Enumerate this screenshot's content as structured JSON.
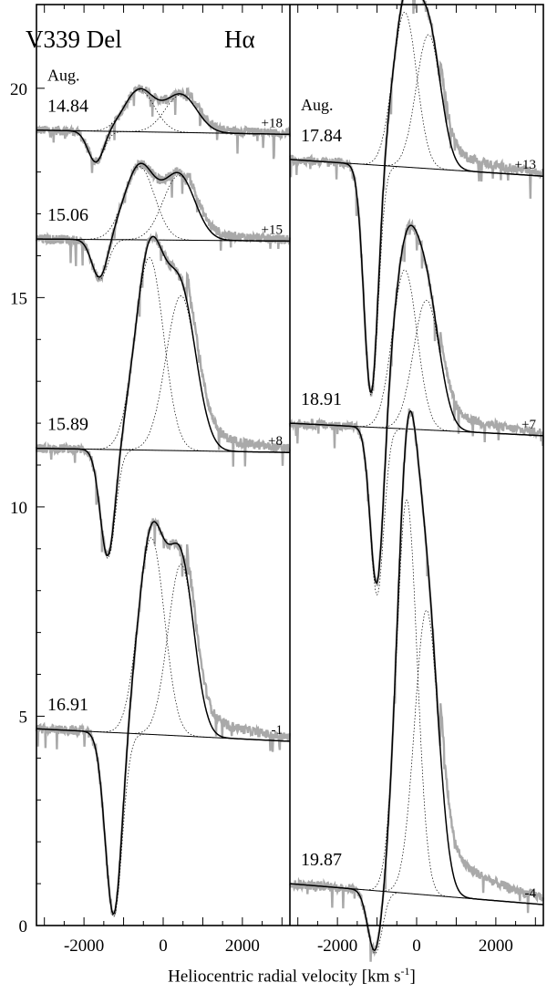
{
  "chart_data": {
    "type": "line",
    "title": "V339 Del",
    "line_label": "Hα",
    "month_label": "Aug.",
    "xlabel": "Heliocentric radial velocity [km s^-1]",
    "xlabel_main": "Heliocentric radial velocity [km s",
    "xlabel_sup": "-1",
    "xlabel_tail": "]",
    "xlim": [
      -3200,
      3200
    ],
    "ylim": [
      0,
      22
    ],
    "xticks": [
      -2000,
      0,
      2000
    ],
    "yticks": [
      0,
      5,
      10,
      15,
      20
    ],
    "panels": [
      {
        "name": "left",
        "spectra": [
          {
            "date": "14.84",
            "offset": "+18",
            "baseline": [
              19.0,
              18.9
            ],
            "absorption": {
              "v": -1700,
              "depth": 0.75,
              "sigma": 200
            },
            "gauss1": {
              "v": -600,
              "amp": 1.0,
              "sigma": 380
            },
            "gauss2": {
              "v": 450,
              "amp": 0.9,
              "sigma": 400
            }
          },
          {
            "date": "15.06",
            "offset": "+15",
            "baseline": [
              16.4,
              16.35
            ],
            "absorption": {
              "v": -1600,
              "depth": 0.95,
              "sigma": 200
            },
            "gauss1": {
              "v": -600,
              "amp": 1.75,
              "sigma": 380
            },
            "gauss2": {
              "v": 400,
              "amp": 1.55,
              "sigma": 400
            }
          },
          {
            "date": "15.89",
            "offset": "+8",
            "baseline": [
              11.4,
              11.3
            ],
            "absorption": {
              "v": -1400,
              "depth": 2.6,
              "sigma": 190
            },
            "gauss1": {
              "v": -350,
              "amp": 4.6,
              "sigma": 360
            },
            "gauss2": {
              "v": 450,
              "amp": 3.7,
              "sigma": 380
            }
          },
          {
            "date": "16.91",
            "offset": "-1",
            "baseline": [
              4.7,
              4.4
            ],
            "absorption": {
              "v": -1250,
              "depth": 4.4,
              "sigma": 210
            },
            "gauss1": {
              "v": -300,
              "amp": 4.7,
              "sigma": 330
            },
            "gauss2": {
              "v": 450,
              "amp": 4.1,
              "sigma": 330
            }
          }
        ]
      },
      {
        "name": "right",
        "spectra": [
          {
            "date": "17.84",
            "offset": "+13",
            "baseline": [
              18.3,
              17.9
            ],
            "absorption": {
              "v": -1150,
              "depth": 5.5,
              "sigma": 180
            },
            "gauss1": {
              "v": -300,
              "amp": 3.7,
              "sigma": 300
            },
            "gauss2": {
              "v": 300,
              "amp": 3.2,
              "sigma": 310
            }
          },
          {
            "date": "18.91",
            "offset": "+7",
            "baseline": [
              12.0,
              11.7
            ],
            "absorption": {
              "v": -1000,
              "depth": 4.0,
              "sigma": 170
            },
            "gauss1": {
              "v": -300,
              "amp": 3.8,
              "sigma": 310
            },
            "gauss2": {
              "v": 250,
              "amp": 3.1,
              "sigma": 330
            }
          },
          {
            "date": "19.87",
            "offset": "-4",
            "baseline": [
              1.0,
              0.5
            ],
            "absorption": {
              "v": -1050,
              "depth": 1.5,
              "sigma": 180
            },
            "gauss1": {
              "v": -250,
              "amp": 9.4,
              "sigma": 260
            },
            "gauss2": {
              "v": 250,
              "amp": 6.8,
              "sigma": 300
            }
          }
        ]
      }
    ]
  }
}
